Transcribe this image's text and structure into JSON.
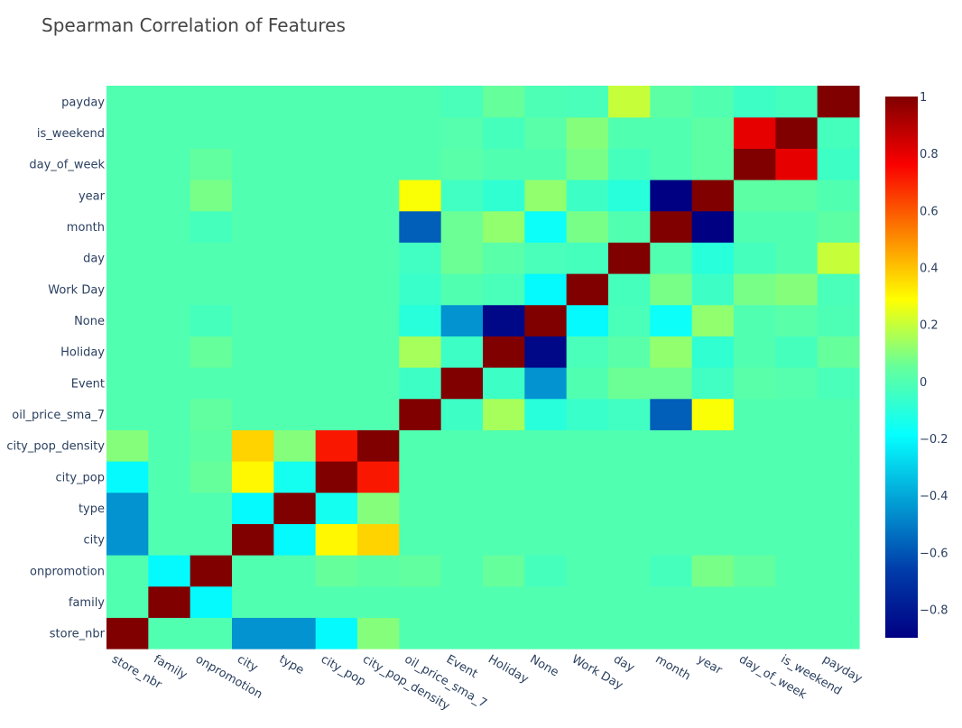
{
  "chart_data": {
    "type": "heatmap",
    "title": "Spearman Correlation of Features",
    "xlabel": "",
    "ylabel": "",
    "x_categories": [
      "store_nbr",
      "family",
      "onpromotion",
      "city",
      "type",
      "city_pop",
      "city_pop_density",
      "oil_price_sma_7",
      "Event",
      "Holiday",
      "None",
      "Work Day",
      "day",
      "month",
      "year",
      "day_of_week",
      "is_weekend",
      "payday"
    ],
    "y_categories": [
      "store_nbr",
      "family",
      "onpromotion",
      "city",
      "type",
      "city_pop",
      "city_pop_density",
      "oil_price_sma_7",
      "Event",
      "Holiday",
      "None",
      "Work Day",
      "day",
      "month",
      "year",
      "day_of_week",
      "is_weekend",
      "payday"
    ],
    "values": [
      [
        1,
        0,
        0,
        -0.45,
        -0.45,
        -0.2,
        0.1,
        0,
        0,
        0,
        0,
        0,
        0,
        0,
        0,
        0,
        0,
        0
      ],
      [
        0,
        1,
        -0.2,
        0,
        0,
        0,
        0,
        0,
        0,
        0,
        0,
        0,
        0,
        0,
        0,
        0,
        0,
        0
      ],
      [
        0,
        -0.2,
        1,
        0,
        0,
        0.05,
        0.03,
        0.04,
        0,
        0.05,
        -0.03,
        0,
        0,
        -0.03,
        0.08,
        0.04,
        0,
        0
      ],
      [
        -0.45,
        0,
        0,
        1,
        -0.2,
        0.3,
        0.37,
        0,
        0,
        0,
        0,
        0,
        0,
        0,
        0,
        0,
        0,
        0
      ],
      [
        -0.45,
        0,
        0,
        -0.2,
        1,
        -0.15,
        0.1,
        0,
        0,
        0,
        0,
        0,
        0,
        0,
        0,
        0,
        0,
        0
      ],
      [
        -0.2,
        0,
        0.05,
        0.3,
        -0.15,
        1,
        0.72,
        0,
        0,
        0,
        0,
        0,
        0,
        0,
        0,
        0,
        0,
        0
      ],
      [
        0.1,
        0,
        0.03,
        0.37,
        0.1,
        0.72,
        1,
        0,
        0,
        0,
        0,
        0,
        0,
        0,
        0,
        0,
        0,
        0
      ],
      [
        0,
        0,
        0.04,
        0,
        0,
        0,
        0,
        1,
        -0.05,
        0.15,
        -0.1,
        -0.06,
        -0.04,
        -0.58,
        0.28,
        0,
        0,
        0
      ],
      [
        0,
        0,
        0,
        0,
        0,
        0,
        0,
        -0.05,
        1,
        -0.05,
        -0.45,
        0,
        0.06,
        0.06,
        -0.04,
        0.02,
        0.01,
        -0.02
      ],
      [
        0,
        0,
        0.05,
        0,
        0,
        0,
        0,
        0.15,
        -0.05,
        1,
        -0.87,
        -0.02,
        0.02,
        0.12,
        -0.08,
        0,
        -0.03,
        0.05
      ],
      [
        0,
        0,
        -0.03,
        0,
        0,
        0,
        0,
        -0.1,
        -0.45,
        -0.87,
        1,
        -0.2,
        -0.02,
        -0.17,
        0.12,
        0,
        0.02,
        -0.01
      ],
      [
        0,
        0,
        0,
        0,
        0,
        0,
        0,
        -0.06,
        0,
        -0.02,
        -0.2,
        1,
        -0.03,
        0.08,
        -0.05,
        0.08,
        0.1,
        -0.02
      ],
      [
        0,
        0,
        0,
        0,
        0,
        0,
        0,
        -0.04,
        0.06,
        0.02,
        -0.02,
        -0.03,
        1,
        0,
        -0.1,
        -0.03,
        0,
        0.2
      ],
      [
        0,
        0,
        -0.03,
        0,
        0,
        0,
        0,
        -0.58,
        0.06,
        0.12,
        -0.17,
        0.08,
        0,
        1,
        -0.9,
        0,
        0,
        0.03
      ],
      [
        0,
        0,
        0.08,
        0,
        0,
        0,
        0,
        0.28,
        -0.04,
        -0.08,
        0.12,
        -0.05,
        -0.1,
        -0.9,
        1,
        0.03,
        0.03,
        0
      ],
      [
        0,
        0,
        0.04,
        0,
        0,
        0,
        0,
        0,
        0.02,
        0,
        0,
        0.08,
        -0.03,
        0,
        0.03,
        1,
        0.8,
        -0.05
      ],
      [
        0,
        0,
        0,
        0,
        0,
        0,
        0,
        0,
        0.01,
        -0.03,
        0.02,
        0.1,
        0,
        0,
        0.03,
        0.8,
        1,
        -0.03
      ],
      [
        0,
        0,
        0,
        0,
        0,
        0,
        0,
        0,
        -0.02,
        0.05,
        -0.01,
        -0.02,
        0.2,
        0.03,
        0,
        -0.05,
        -0.03,
        1
      ]
    ],
    "zlim": [
      -0.9,
      1
    ],
    "colorbar_ticks": [
      "1",
      "0.8",
      "0.6",
      "0.4",
      "0.2",
      "0",
      "−0.2",
      "−0.4",
      "−0.6",
      "−0.8"
    ],
    "colorscale": "jet",
    "grid": false,
    "legend": "colorbar-right"
  }
}
